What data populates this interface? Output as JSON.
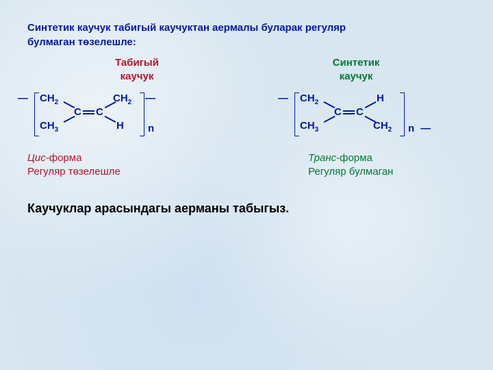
{
  "colors": {
    "intro": "#0018a8",
    "natural_title": "#b8142d",
    "synthetic_title": "#007a33",
    "struct_natural": "#0018a8",
    "struct_synthetic": "#0018a8",
    "cis_italic": "#b8142d",
    "trans_italic": "#007a33",
    "caption_rest": "#b8142d",
    "caption_rest2": "#007a33",
    "question": "#000000"
  },
  "intro_line1": "Синтетик каучук табигый каучуктан аермалы буларак регуляр",
  "intro_line2": "булмаган төзелешле:",
  "natural": {
    "title_l1": "Табигый",
    "title_l2": "каучук",
    "top_left": "CH",
    "top_left_sub": "2",
    "top_right": "CH",
    "top_right_sub": "2",
    "c_left": "C",
    "c_right": "C",
    "bot_left": "CH",
    "bot_left_sub": "3",
    "bot_right": "H",
    "dash_l": "—",
    "dash_r": "—",
    "n": "n",
    "caption_italic": "Цис-",
    "caption_rest": "форма",
    "caption_l2": "Регуляр төзелешле"
  },
  "synthetic": {
    "title_l1": "Синтетик",
    "title_l2": "каучук",
    "top_left": "CH",
    "top_left_sub": "2",
    "top_right": "H",
    "c_left": "C",
    "c_right": "C",
    "bot_left": "CH",
    "bot_left_sub": "3",
    "bot_right": "CH",
    "bot_right_sub": "2",
    "dash_l": "—",
    "dash_r": "—",
    "n": "n",
    "caption_italic": "Транс-",
    "caption_rest": "форма",
    "caption_l2": "Регуляр булмаган"
  },
  "question": "Каучуклар арасындагы аерманы табыгыз.",
  "layout": {
    "struct_width": 300,
    "bracket_height": 62
  }
}
